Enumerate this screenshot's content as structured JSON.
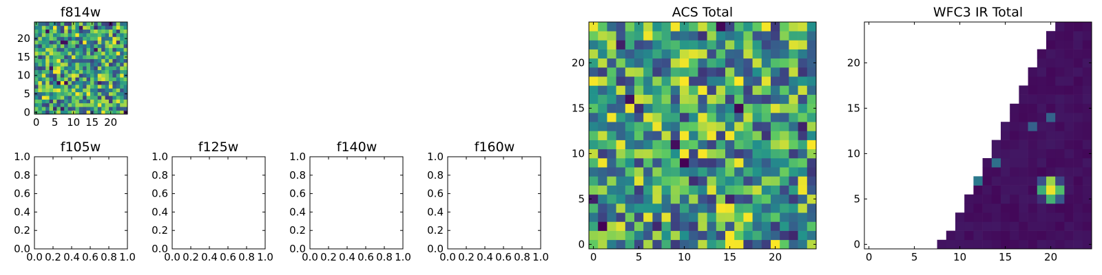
{
  "colors": {
    "background": "#ffffff",
    "axis": "#000000",
    "cmap": [
      "#440154",
      "#3b528b",
      "#21918c",
      "#5ec962",
      "#fde725"
    ]
  },
  "chart_data": [
    {
      "type": "heatmap",
      "title": "f814w",
      "xlabel": "",
      "ylabel": "",
      "xlim": [
        -0.5,
        24.5
      ],
      "ylim": [
        -0.5,
        24.5
      ],
      "xticks": [
        0,
        5,
        10,
        15,
        20
      ],
      "yticks": [
        0,
        5,
        10,
        15,
        20
      ],
      "grid": false,
      "colormap": "viridis",
      "rows": 25,
      "cols": 25,
      "value_range": [
        0,
        1
      ],
      "pattern": "noise"
    },
    {
      "type": "heatmap",
      "title": "f105w",
      "xlabel": "",
      "ylabel": "",
      "xlim": [
        0.0,
        1.0
      ],
      "ylim": [
        0.0,
        1.0
      ],
      "xticks": [
        "0.0",
        "0.2",
        "0.4",
        "0.6",
        "0.8",
        "1.0"
      ],
      "yticks": [
        "0.0",
        "0.2",
        "0.4",
        "0.6",
        "0.8",
        "1.0"
      ],
      "grid": false,
      "empty": true
    },
    {
      "type": "heatmap",
      "title": "f125w",
      "xlabel": "",
      "ylabel": "",
      "xlim": [
        0.0,
        1.0
      ],
      "ylim": [
        0.0,
        1.0
      ],
      "xticks": [
        "0.0",
        "0.2",
        "0.4",
        "0.6",
        "0.8",
        "1.0"
      ],
      "yticks": [
        "0.0",
        "0.2",
        "0.4",
        "0.6",
        "0.8",
        "1.0"
      ],
      "grid": false,
      "empty": true
    },
    {
      "type": "heatmap",
      "title": "f140w",
      "xlabel": "",
      "ylabel": "",
      "xlim": [
        0.0,
        1.0
      ],
      "ylim": [
        0.0,
        1.0
      ],
      "xticks": [
        "0.0",
        "0.2",
        "0.4",
        "0.6",
        "0.8",
        "1.0"
      ],
      "yticks": [
        "0.0",
        "0.2",
        "0.4",
        "0.6",
        "0.8",
        "1.0"
      ],
      "grid": false,
      "empty": true
    },
    {
      "type": "heatmap",
      "title": "f160w",
      "xlabel": "",
      "ylabel": "",
      "xlim": [
        0.0,
        1.0
      ],
      "ylim": [
        0.0,
        1.0
      ],
      "xticks": [
        "0.0",
        "0.2",
        "0.4",
        "0.6",
        "0.8",
        "1.0"
      ],
      "yticks": [
        "0.0",
        "0.2",
        "0.4",
        "0.6",
        "0.8",
        "1.0"
      ],
      "grid": false,
      "empty": true
    },
    {
      "type": "heatmap",
      "title": "ACS Total",
      "xlabel": "",
      "ylabel": "",
      "xlim": [
        -0.5,
        24.5
      ],
      "ylim": [
        -0.5,
        24.5
      ],
      "xticks": [
        0,
        5,
        10,
        15,
        20
      ],
      "yticks": [
        0,
        5,
        10,
        15,
        20
      ],
      "grid": false,
      "colormap": "viridis",
      "rows": 25,
      "cols": 25,
      "value_range": [
        0,
        1
      ],
      "pattern": "noise"
    },
    {
      "type": "heatmap",
      "title": "WFC3 IR Total",
      "xlabel": "",
      "ylabel": "",
      "xlim": [
        -0.5,
        24.5
      ],
      "ylim": [
        -0.5,
        24.5
      ],
      "xticks": [
        0,
        5,
        10,
        15,
        20
      ],
      "yticks": [
        0,
        5,
        10,
        15,
        20
      ],
      "grid": false,
      "colormap": "viridis",
      "rows": 25,
      "cols": 25,
      "value_range": [
        0,
        1
      ],
      "pattern": "wedge",
      "masked_region": "upper-left triangle (white)",
      "bright_source": {
        "x": 20,
        "y": 6
      },
      "faint_sources": [
        {
          "x": 18,
          "y": 13
        },
        {
          "x": 20,
          "y": 14
        },
        {
          "x": 12,
          "y": 7
        },
        {
          "x": 14,
          "y": 9
        }
      ]
    }
  ]
}
